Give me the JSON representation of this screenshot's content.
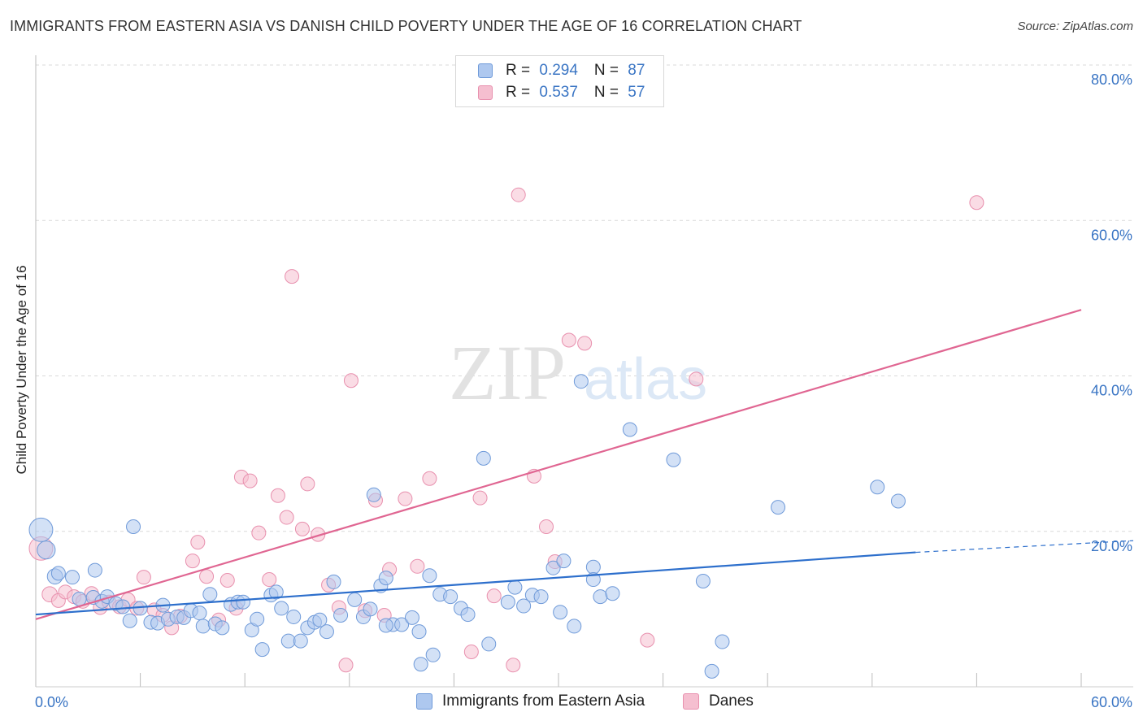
{
  "title": "IMMIGRANTS FROM EASTERN ASIA VS DANISH CHILD POVERTY UNDER THE AGE OF 16 CORRELATION CHART",
  "source": "Source: ZipAtlas.com",
  "watermark": {
    "zip": "ZIP",
    "atlas": "atlas"
  },
  "legend": {
    "rows": [
      {
        "r_label": "R = ",
        "r_value": "0.294",
        "n_label": "N = ",
        "n_value": "87"
      },
      {
        "r_label": "R = ",
        "r_value": "0.537",
        "n_label": "N = ",
        "n_value": "57"
      }
    ]
  },
  "bottom_legend": [
    "Immigrants from Eastern Asia",
    "Danes"
  ],
  "colors": {
    "blue_fill": "#aec8ef",
    "blue_stroke": "#6f9ad9",
    "blue_line": "#2d6fcc",
    "pink_fill": "#f5bfd0",
    "pink_stroke": "#e890ae",
    "pink_line": "#e06692",
    "tick_label": "#3a75c4",
    "grid": "#d9d9d9"
  },
  "chart_data": {
    "type": "scatter",
    "title": "IMMIGRANTS FROM EASTERN ASIA VS DANISH CHILD POVERTY UNDER THE AGE OF 16 CORRELATION CHART",
    "xlabel": "",
    "ylabel": "Child Poverty Under the Age of 16",
    "xlim": [
      0,
      60
    ],
    "ylim": [
      0,
      80
    ],
    "x_tick_labels": [
      "0.0%",
      "60.0%"
    ],
    "y_ticks": [
      20,
      40,
      60,
      80
    ],
    "y_tick_labels": [
      "20.0%",
      "40.0%",
      "60.0%",
      "80.0%"
    ],
    "grid": true,
    "legend_position": "top-center",
    "series": [
      {
        "name": "Immigrants from Eastern Asia",
        "r": 0.294,
        "n": 87,
        "trend": {
          "x0": 0,
          "y0": 9.3,
          "x1": 50.5,
          "y1": 17.3,
          "dashed_to_x": 60,
          "dashed_to_y": 18.8
        },
        "points": [
          [
            0.3,
            20.2,
            1.7
          ],
          [
            0.6,
            17.6,
            1.3
          ],
          [
            1.1,
            14.2,
            1.1
          ],
          [
            1.3,
            14.6,
            1.0
          ],
          [
            2.1,
            14.1,
            1.0
          ],
          [
            2.5,
            11.3,
            1.0
          ],
          [
            3.3,
            11.5,
            1.0
          ],
          [
            3.8,
            11.0,
            1.0
          ],
          [
            3.4,
            15.0,
            1.0
          ],
          [
            4.1,
            11.6,
            1.0
          ],
          [
            4.6,
            10.7,
            1.0
          ],
          [
            5.0,
            10.3,
            1.0
          ],
          [
            5.4,
            8.5,
            1.0
          ],
          [
            5.6,
            20.6,
            1.0
          ],
          [
            6.0,
            10.1,
            1.0
          ],
          [
            6.6,
            8.3,
            1.0
          ],
          [
            7.0,
            8.2,
            1.0
          ],
          [
            7.3,
            10.5,
            1.0
          ],
          [
            7.6,
            8.7,
            1.0
          ],
          [
            8.1,
            9.0,
            1.0
          ],
          [
            8.5,
            8.9,
            1.0
          ],
          [
            8.9,
            9.8,
            1.0
          ],
          [
            9.4,
            9.5,
            1.0
          ],
          [
            9.6,
            7.8,
            1.0
          ],
          [
            10.0,
            11.9,
            1.0
          ],
          [
            10.3,
            8.1,
            1.0
          ],
          [
            10.7,
            7.6,
            1.0
          ],
          [
            11.2,
            10.6,
            1.0
          ],
          [
            11.6,
            10.9,
            1.0
          ],
          [
            11.9,
            10.9,
            1.0
          ],
          [
            12.4,
            7.3,
            1.0
          ],
          [
            12.7,
            8.7,
            1.0
          ],
          [
            13.0,
            4.8,
            1.0
          ],
          [
            13.5,
            11.8,
            1.0
          ],
          [
            13.8,
            12.2,
            1.0
          ],
          [
            14.1,
            10.1,
            1.0
          ],
          [
            14.5,
            5.9,
            1.0
          ],
          [
            14.8,
            9.0,
            1.0
          ],
          [
            15.2,
            5.9,
            1.0
          ],
          [
            15.6,
            7.6,
            1.0
          ],
          [
            16.0,
            8.3,
            1.0
          ],
          [
            16.3,
            8.6,
            1.0
          ],
          [
            16.7,
            7.1,
            1.0
          ],
          [
            17.1,
            13.5,
            1.0
          ],
          [
            17.5,
            9.2,
            1.0
          ],
          [
            18.3,
            11.2,
            1.0
          ],
          [
            18.8,
            9.0,
            1.0
          ],
          [
            19.2,
            10.0,
            1.0
          ],
          [
            19.8,
            13.0,
            1.0
          ],
          [
            20.1,
            14.0,
            1.0
          ],
          [
            19.4,
            24.7,
            1.0
          ],
          [
            20.5,
            8.0,
            1.0
          ],
          [
            21.0,
            8.0,
            1.0
          ],
          [
            21.6,
            8.9,
            1.0
          ],
          [
            22.0,
            7.1,
            1.0
          ],
          [
            22.8,
            4.1,
            1.0
          ],
          [
            22.6,
            14.3,
            1.0
          ],
          [
            23.2,
            11.9,
            1.0
          ],
          [
            23.8,
            11.6,
            1.0
          ],
          [
            24.4,
            10.1,
            1.0
          ],
          [
            24.8,
            9.3,
            1.0
          ],
          [
            25.7,
            29.4,
            1.0
          ],
          [
            26.0,
            5.5,
            1.0
          ],
          [
            27.1,
            10.9,
            1.0
          ],
          [
            27.5,
            12.8,
            1.0
          ],
          [
            28.0,
            10.4,
            1.0
          ],
          [
            28.5,
            11.8,
            1.0
          ],
          [
            29.0,
            11.6,
            1.0
          ],
          [
            29.7,
            15.3,
            1.0
          ],
          [
            30.3,
            16.2,
            1.0
          ],
          [
            30.1,
            9.6,
            1.0
          ],
          [
            30.9,
            7.8,
            1.0
          ],
          [
            31.3,
            39.3,
            1.0
          ],
          [
            32.0,
            15.4,
            1.0
          ],
          [
            32.0,
            13.8,
            1.0
          ],
          [
            32.4,
            11.6,
            1.0
          ],
          [
            33.1,
            12.0,
            1.0
          ],
          [
            34.1,
            33.1,
            1.0
          ],
          [
            36.6,
            29.2,
            1.0
          ],
          [
            38.3,
            13.6,
            1.0
          ],
          [
            39.4,
            5.8,
            1.0
          ],
          [
            38.8,
            2.0,
            1.0
          ],
          [
            42.6,
            23.1,
            1.0
          ],
          [
            48.3,
            25.7,
            1.0
          ],
          [
            49.5,
            23.9,
            1.0
          ],
          [
            22.1,
            2.9,
            1.0
          ],
          [
            20.1,
            7.9,
            1.0
          ]
        ]
      },
      {
        "name": "Danes",
        "r": 0.537,
        "n": 57,
        "trend": {
          "x0": 0,
          "y0": 8.7,
          "x1": 60,
          "y1": 48.5
        },
        "points": [
          [
            0.3,
            17.8,
            1.7
          ],
          [
            0.8,
            11.9,
            1.1
          ],
          [
            1.3,
            11.1,
            1.0
          ],
          [
            1.7,
            12.2,
            1.0
          ],
          [
            2.2,
            11.6,
            1.0
          ],
          [
            2.7,
            11.0,
            1.0
          ],
          [
            3.2,
            12.0,
            1.0
          ],
          [
            3.7,
            10.2,
            1.0
          ],
          [
            4.2,
            10.9,
            1.0
          ],
          [
            4.8,
            10.3,
            1.0
          ],
          [
            5.3,
            11.2,
            1.0
          ],
          [
            5.8,
            10.1,
            1.0
          ],
          [
            6.2,
            14.1,
            1.0
          ],
          [
            6.8,
            9.9,
            1.0
          ],
          [
            7.3,
            9.2,
            1.0
          ],
          [
            7.8,
            7.6,
            1.0
          ],
          [
            8.3,
            9.1,
            1.0
          ],
          [
            9.0,
            16.2,
            1.0
          ],
          [
            9.3,
            18.6,
            1.0
          ],
          [
            9.8,
            14.2,
            1.0
          ],
          [
            10.5,
            8.6,
            1.0
          ],
          [
            11.0,
            13.7,
            1.0
          ],
          [
            11.5,
            10.1,
            1.0
          ],
          [
            11.8,
            27.0,
            1.0
          ],
          [
            12.3,
            26.5,
            1.0
          ],
          [
            12.8,
            19.8,
            1.0
          ],
          [
            13.4,
            13.8,
            1.0
          ],
          [
            13.9,
            24.6,
            1.0
          ],
          [
            14.4,
            21.8,
            1.0
          ],
          [
            14.7,
            52.8,
            1.0
          ],
          [
            15.3,
            20.3,
            1.0
          ],
          [
            15.6,
            26.1,
            1.0
          ],
          [
            16.2,
            19.6,
            1.0
          ],
          [
            16.8,
            13.1,
            1.0
          ],
          [
            17.4,
            10.2,
            1.0
          ],
          [
            17.8,
            2.8,
            1.0
          ],
          [
            18.1,
            39.4,
            1.0
          ],
          [
            18.9,
            9.8,
            1.0
          ],
          [
            19.5,
            24.0,
            1.0
          ],
          [
            20.0,
            9.2,
            1.0
          ],
          [
            20.3,
            15.1,
            1.0
          ],
          [
            21.2,
            24.2,
            1.0
          ],
          [
            21.9,
            15.5,
            1.0
          ],
          [
            22.6,
            26.8,
            1.0
          ],
          [
            25.0,
            4.5,
            1.0
          ],
          [
            25.5,
            24.3,
            1.0
          ],
          [
            26.3,
            11.7,
            1.0
          ],
          [
            27.4,
            2.8,
            1.0
          ],
          [
            27.7,
            63.3,
            1.0
          ],
          [
            28.6,
            27.1,
            1.0
          ],
          [
            29.3,
            20.6,
            1.0
          ],
          [
            29.8,
            16.1,
            1.0
          ],
          [
            30.6,
            44.6,
            1.0
          ],
          [
            31.5,
            44.2,
            1.0
          ],
          [
            35.1,
            6.0,
            1.0
          ],
          [
            37.9,
            39.6,
            1.0
          ],
          [
            54.0,
            62.3,
            1.0
          ]
        ]
      }
    ]
  }
}
